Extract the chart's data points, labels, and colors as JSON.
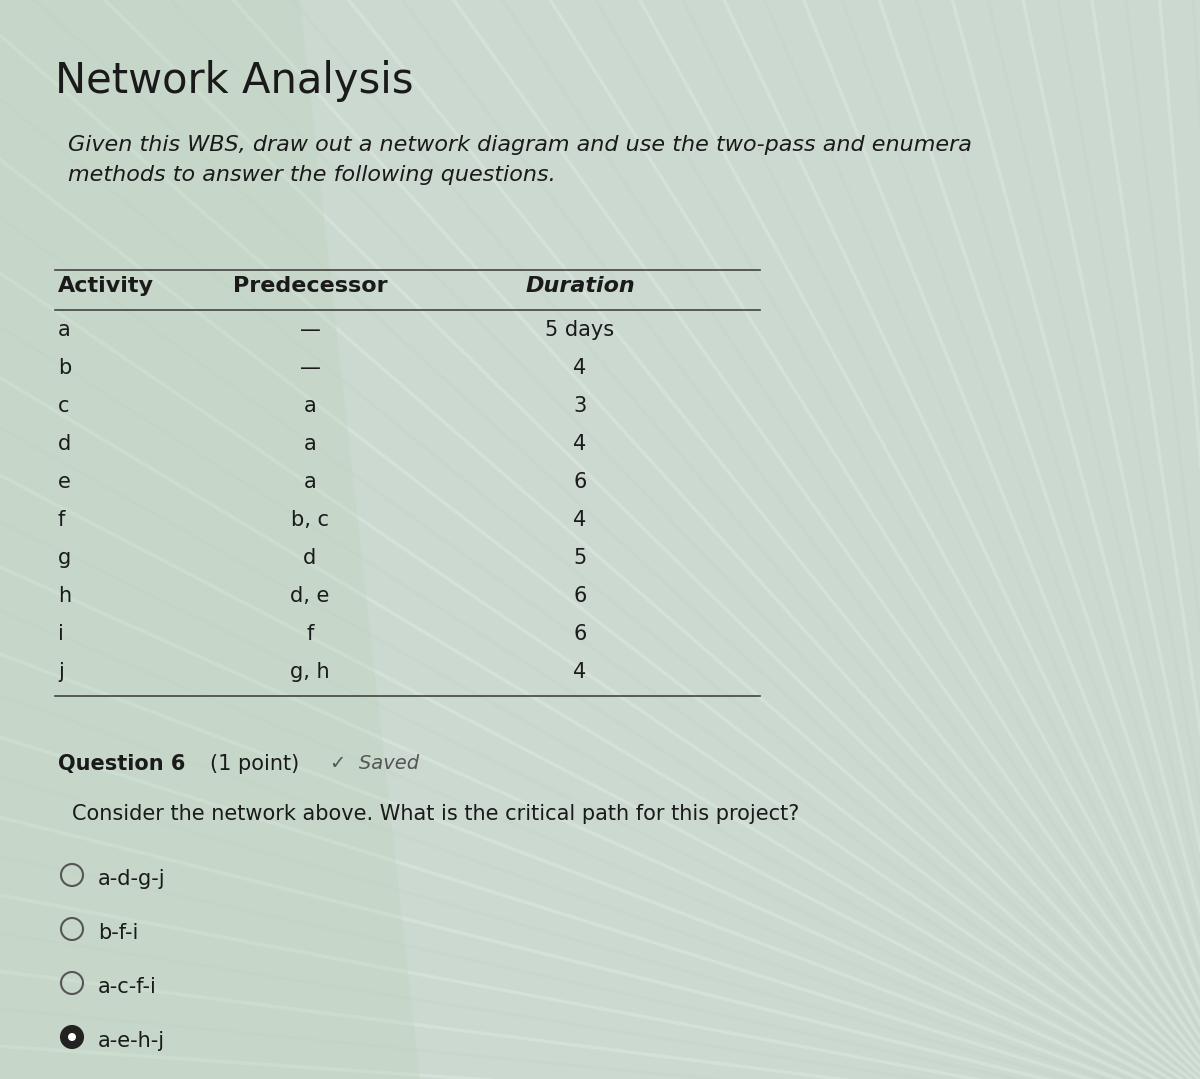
{
  "title": "Network Analysis",
  "subtitle": "Given this WBS, draw out a network diagram and use the two-pass and enumera\nmethods to answer the following questions.",
  "table_headers": [
    "Activity",
    "Predecessor",
    "Duration"
  ],
  "table_rows": [
    [
      "a",
      "—",
      "5 days"
    ],
    [
      "b",
      "—",
      "4"
    ],
    [
      "c",
      "a",
      "3"
    ],
    [
      "d",
      "a",
      "4"
    ],
    [
      "e",
      "a",
      "6"
    ],
    [
      "f",
      "b, c",
      "4"
    ],
    [
      "g",
      "d",
      "5"
    ],
    [
      "h",
      "d, e",
      "6"
    ],
    [
      "i",
      "f",
      "6"
    ],
    [
      "j",
      "g, h",
      "4"
    ]
  ],
  "question_label": "Question 6",
  "question_points": "(1 point)",
  "saved_label": "✓  Saved",
  "question_text": "Consider the network above. What is the critical path for this project?",
  "options": [
    "a-d-g-j",
    "b-f-i",
    "a-c-f-i",
    "a-e-h-j"
  ],
  "selected_option": 3,
  "bg_color": "#ccd9d0",
  "text_color": "#1a1a1a",
  "title_fontsize": 30,
  "subtitle_fontsize": 16,
  "header_fontsize": 16,
  "body_fontsize": 15,
  "question_fontsize": 15,
  "fig_width": 12.0,
  "fig_height": 10.79,
  "dpi": 100
}
